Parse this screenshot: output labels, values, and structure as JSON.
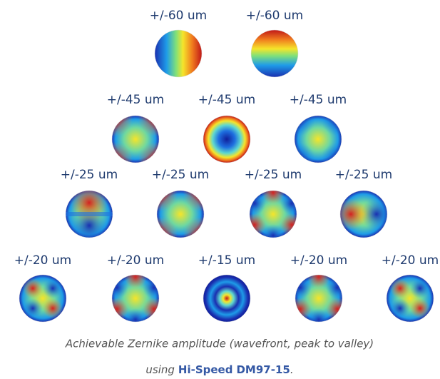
{
  "rows": [
    [
      "+/-60 um",
      "+/-60 um"
    ],
    [
      "+/-45 um",
      "+/-45 um",
      "+/-45 um"
    ],
    [
      "+/-25 um",
      "+/-25 um",
      "+/-25 um",
      "+/-25 um"
    ],
    [
      "+/-20 um",
      "+/-20 um",
      "+/-15 um",
      "+/-20 um",
      "+/-20 um"
    ]
  ],
  "caption": {
    "line1": "Achievable Zernike amplitude (wavefront, peak to valley)",
    "line2_prefix": "using",
    "product_name": "Hi-Speed",
    "product_model": "DM97-15",
    "line2_suffix": "."
  }
}
